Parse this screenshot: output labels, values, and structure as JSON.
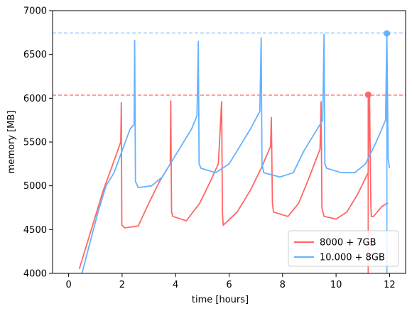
{
  "chart_data": {
    "type": "line",
    "title": "",
    "xlabel": "time [hours]",
    "ylabel": "memory [MB]",
    "xlim": [
      -0.6,
      12.6
    ],
    "ylim": [
      4000,
      7000
    ],
    "xticks": [
      0,
      2,
      4,
      6,
      8,
      10,
      12
    ],
    "yticks": [
      4000,
      4500,
      5000,
      5500,
      6000,
      6500,
      7000
    ],
    "legend_position": "bottom-right",
    "grid": false,
    "series": [
      {
        "name": "8000 + 7GB",
        "color": "#ff6666",
        "x": [
          0.4,
          0.7,
          1.0,
          1.3,
          1.6,
          1.95,
          1.97,
          1.99,
          2.1,
          2.6,
          3.0,
          3.4,
          3.8,
          3.82,
          3.85,
          3.9,
          4.4,
          4.9,
          5.3,
          5.6,
          5.72,
          5.75,
          5.78,
          6.3,
          6.8,
          7.2,
          7.55,
          7.58,
          7.62,
          7.66,
          8.2,
          8.6,
          9.0,
          9.4,
          9.44,
          9.47,
          9.55,
          10.0,
          10.4,
          10.8,
          11.2,
          11.25,
          11.3,
          11.32,
          11.4,
          11.7,
          11.9,
          11.95
        ],
        "y": [
          4050,
          4350,
          4650,
          4950,
          5200,
          5500,
          5950,
          4550,
          4520,
          4540,
          4800,
          5050,
          5250,
          5970,
          4700,
          4650,
          4600,
          4800,
          5050,
          5250,
          5960,
          4700,
          4550,
          4700,
          4950,
          5200,
          5450,
          5780,
          4800,
          4700,
          4650,
          4800,
          5100,
          5420,
          5960,
          4750,
          4650,
          4620,
          4700,
          4900,
          5150,
          6040,
          4770,
          4650,
          4650,
          4760,
          4800,
          4800
        ],
        "end_marker": [
          11.2,
          6040
        ],
        "hline": 6035
      },
      {
        "name": "10.000 + 8GB",
        "color": "#66b2ff",
        "x": [
          0.5,
          0.8,
          1.1,
          1.4,
          1.7,
          2.0,
          2.3,
          2.45,
          2.47,
          2.5,
          2.6,
          3.1,
          3.5,
          3.9,
          4.3,
          4.6,
          4.8,
          4.85,
          4.88,
          4.95,
          5.5,
          6.0,
          6.4,
          6.8,
          7.15,
          7.2,
          7.23,
          7.3,
          7.9,
          8.4,
          8.8,
          9.2,
          9.5,
          9.55,
          9.58,
          9.65,
          10.2,
          10.7,
          11.1,
          11.5,
          11.85,
          11.9,
          11.95,
          12.0
        ],
        "y": [
          4000,
          4350,
          4700,
          5000,
          5150,
          5400,
          5650,
          5700,
          6660,
          5050,
          4980,
          5000,
          5100,
          5300,
          5500,
          5650,
          5800,
          6650,
          5250,
          5200,
          5150,
          5250,
          5450,
          5650,
          5850,
          6690,
          5250,
          5150,
          5100,
          5150,
          5400,
          5600,
          5750,
          6730,
          5250,
          5200,
          5150,
          5150,
          5250,
          5500,
          5750,
          6740,
          5300,
          5200
        ],
        "end_marker": [
          11.9,
          6740
        ],
        "hline": 6745
      }
    ]
  }
}
